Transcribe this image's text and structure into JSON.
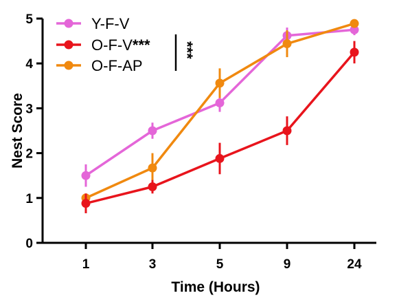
{
  "chart_data": {
    "type": "line",
    "xlabel": "Time (Hours)",
    "ylabel": "Nest Score",
    "categories": [
      "1",
      "3",
      "5",
      "9",
      "24"
    ],
    "ylim": [
      0,
      5
    ],
    "yticks": [
      "0",
      "1",
      "2",
      "3",
      "4",
      "5"
    ],
    "grid": false,
    "legend_position": "top-left",
    "series": [
      {
        "name": "Y-F-V",
        "color": "#e466d8",
        "values": [
          1.5,
          2.5,
          3.12,
          4.62,
          4.75
        ],
        "errors": [
          0.25,
          0.18,
          0.2,
          0.18,
          0.12
        ]
      },
      {
        "name": "O-F-V",
        "color": "#e8141c",
        "values": [
          0.88,
          1.25,
          1.88,
          2.5,
          4.25
        ],
        "errors": [
          0.22,
          0.15,
          0.35,
          0.32,
          0.25
        ]
      },
      {
        "name": "O-F-AP",
        "color": "#f0890f",
        "values": [
          1.0,
          1.67,
          3.56,
          4.44,
          4.89
        ],
        "errors": [
          0.08,
          0.33,
          0.33,
          0.3,
          0.08
        ]
      }
    ],
    "annotations": {
      "legend_marker": "***",
      "bracket": "***"
    }
  }
}
